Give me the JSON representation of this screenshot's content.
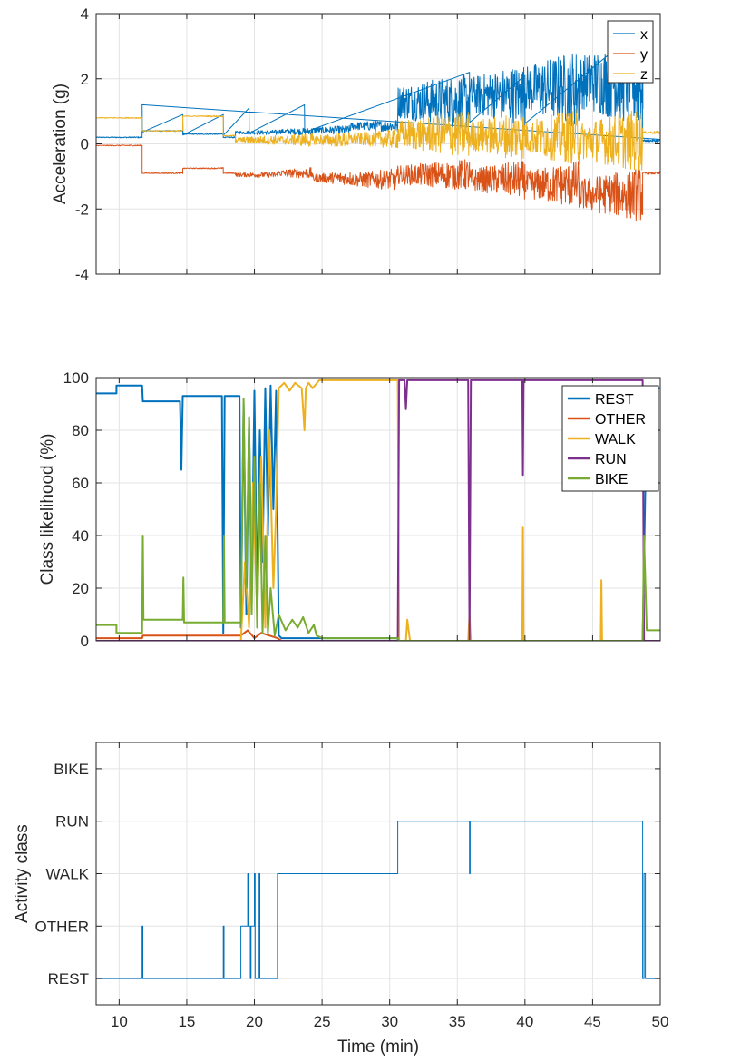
{
  "chart_data": [
    {
      "type": "line",
      "ylabel": "Acceleration (g)",
      "xlim": [
        8.3,
        50
      ],
      "ylim": [
        -4,
        4
      ],
      "yticks": [
        -4,
        -2,
        0,
        2,
        4
      ],
      "xticks": [
        10,
        15,
        20,
        25,
        30,
        35,
        40,
        45,
        50
      ],
      "grid": true,
      "legend": "top-right",
      "series": [
        {
          "name": "x",
          "color": "#0072BD",
          "segments": [
            [
              8.3,
              11.7,
              0.2,
              0.02
            ],
            [
              11.7,
              14.7,
              0.4,
              0.02
            ],
            [
              14.7,
              17.7,
              0.3,
              0.02
            ],
            [
              17.7,
              18.6,
              0.2,
              0.02
            ],
            [
              18.6,
              21.7,
              0.35,
              0.08
            ],
            [
              21.7,
              24.3,
              0.38,
              0.12
            ],
            [
              24.3,
              27.1,
              0.42,
              0.15
            ],
            [
              27.1,
              30.6,
              0.55,
              0.2
            ],
            [
              30.6,
              35.9,
              1.3,
              0.9
            ],
            [
              35.9,
              40,
              1.5,
              1.0
            ],
            [
              40,
              44,
              1.7,
              1.25
            ],
            [
              44,
              48.7,
              1.9,
              1.45
            ],
            [
              48.7,
              50,
              0.1,
              0.05
            ]
          ]
        },
        {
          "name": "y",
          "color": "#D95319",
          "segments": [
            [
              8.3,
              11.7,
              -0.05,
              0.02
            ],
            [
              11.7,
              14.7,
              -0.9,
              0.02
            ],
            [
              14.7,
              17.7,
              -0.75,
              0.02
            ],
            [
              17.7,
              18.6,
              -0.9,
              0.02
            ],
            [
              18.6,
              21.7,
              -0.95,
              0.1
            ],
            [
              21.7,
              24.3,
              -0.9,
              0.18
            ],
            [
              24.3,
              27.1,
              -1.05,
              0.22
            ],
            [
              27.1,
              30.6,
              -1.1,
              0.35
            ],
            [
              30.6,
              35.9,
              -0.95,
              0.5
            ],
            [
              35.9,
              40,
              -1.1,
              0.6
            ],
            [
              40,
              44,
              -1.25,
              0.75
            ],
            [
              44,
              48.7,
              -1.55,
              0.85
            ],
            [
              48.7,
              50,
              -0.9,
              0.05
            ]
          ]
        },
        {
          "name": "z",
          "color": "#EDB120",
          "segments": [
            [
              8.3,
              11.7,
              0.8,
              0.02
            ],
            [
              11.7,
              14.7,
              0.4,
              0.02
            ],
            [
              14.7,
              17.7,
              0.85,
              0.02
            ],
            [
              17.7,
              18.6,
              0.25,
              0.02
            ],
            [
              18.6,
              21.7,
              0.12,
              0.15
            ],
            [
              21.7,
              24.3,
              0.12,
              0.22
            ],
            [
              24.3,
              27.1,
              0.12,
              0.25
            ],
            [
              27.1,
              30.6,
              0.15,
              0.3
            ],
            [
              30.6,
              35.9,
              0.3,
              0.75
            ],
            [
              35.9,
              40,
              0.25,
              0.8
            ],
            [
              40,
              44,
              0.2,
              0.9
            ],
            [
              44,
              48.7,
              0.1,
              1.0
            ],
            [
              48.7,
              50,
              0.35,
              0.05
            ]
          ]
        }
      ]
    },
    {
      "type": "line",
      "ylabel": "Class likelihood (%)",
      "xlim": [
        8.3,
        50
      ],
      "ylim": [
        0,
        100
      ],
      "yticks": [
        0,
        20,
        40,
        60,
        80,
        100
      ],
      "xticks": [
        10,
        15,
        20,
        25,
        30,
        35,
        40,
        45,
        50
      ],
      "grid": true,
      "legend": "top-right",
      "series": [
        {
          "name": "REST",
          "color": "#0072BD",
          "x": [
            8.3,
            9.8,
            9.8,
            11.7,
            11.75,
            14.5,
            14.6,
            14.7,
            14.8,
            17.6,
            17.7,
            17.8,
            18.9,
            19.0,
            19.2,
            19.4,
            19.6,
            19.8,
            20.0,
            20.2,
            20.4,
            20.6,
            20.8,
            21.0,
            21.2,
            21.4,
            21.6,
            21.8,
            22.0,
            30.6,
            30.7,
            48.7,
            48.9,
            49.0,
            50
          ],
          "y": [
            94,
            94,
            97,
            97,
            91,
            91,
            65,
            93,
            93,
            93,
            3,
            93,
            93,
            5,
            90,
            10,
            85,
            20,
            95,
            15,
            80,
            30,
            96,
            40,
            97,
            50,
            95,
            2,
            1,
            1,
            0,
            0,
            60,
            96,
            96
          ]
        },
        {
          "name": "OTHER",
          "color": "#D95319",
          "x": [
            8.3,
            11.7,
            11.75,
            19.0,
            19.5,
            20.0,
            20.5,
            21.7,
            22.0,
            50
          ],
          "y": [
            1,
            1,
            2,
            2,
            4,
            1,
            3,
            1,
            0,
            0
          ]
        },
        {
          "name": "WALK",
          "color": "#EDB120",
          "x": [
            8.3,
            19.0,
            19.3,
            19.6,
            19.9,
            20.2,
            20.5,
            20.8,
            21.1,
            21.4,
            21.6,
            21.8,
            22.2,
            22.6,
            23.0,
            23.5,
            23.7,
            23.8,
            24.0,
            24.3,
            24.8,
            25.0,
            30.6,
            30.7,
            31.2,
            31.3,
            31.5,
            35.8,
            35.9,
            36.0,
            39.8,
            39.85,
            39.9,
            45.6,
            45.65,
            45.7,
            48.7,
            50
          ],
          "y": [
            0,
            0,
            30,
            5,
            60,
            10,
            70,
            5,
            80,
            20,
            50,
            96,
            98,
            95,
            98,
            96,
            80,
            96,
            98,
            96,
            99,
            99,
            99,
            0,
            0,
            8,
            0,
            0,
            10,
            0,
            0,
            43,
            0,
            0,
            23,
            0,
            0,
            0
          ]
        },
        {
          "name": "RUN",
          "color": "#7E2F8E",
          "x": [
            8.3,
            30.6,
            30.7,
            31.1,
            31.2,
            31.3,
            35.8,
            35.9,
            36.0,
            39.8,
            39.85,
            39.9,
            48.7,
            48.8,
            50
          ],
          "y": [
            0,
            0,
            99,
            99,
            88,
            99,
            99,
            0,
            99,
            99,
            63,
            99,
            99,
            0,
            0
          ]
        },
        {
          "name": "BIKE",
          "color": "#77AC30",
          "x": [
            8.3,
            9.8,
            9.8,
            11.7,
            11.75,
            11.8,
            14.7,
            14.75,
            14.8,
            17.7,
            17.75,
            17.8,
            19.0,
            19.2,
            19.4,
            19.6,
            19.8,
            20.0,
            20.2,
            20.4,
            20.6,
            20.8,
            21.0,
            21.2,
            21.5,
            21.8,
            22.3,
            22.8,
            23.2,
            23.6,
            24.0,
            24.4,
            24.6,
            25.0,
            30.6,
            30.7,
            48.7,
            48.8,
            49.0,
            50
          ],
          "y": [
            6,
            6,
            3,
            3,
            40,
            8,
            8,
            24,
            7,
            7,
            40,
            7,
            7,
            92,
            20,
            85,
            10,
            70,
            5,
            60,
            3,
            40,
            3,
            20,
            2,
            10,
            4,
            8,
            5,
            9,
            3,
            6,
            2,
            1,
            1,
            0,
            0,
            40,
            4,
            4
          ]
        }
      ]
    },
    {
      "type": "line",
      "ylabel": "Activity class",
      "xlabel": "Time (min)",
      "xlim": [
        8.3,
        50
      ],
      "ylim": [
        0.5,
        5.5
      ],
      "yticks": [
        1,
        2,
        3,
        4,
        5
      ],
      "yticklabels": [
        "REST",
        "OTHER",
        "WALK",
        "RUN",
        "BIKE"
      ],
      "xticks": [
        10,
        15,
        20,
        25,
        30,
        35,
        40,
        45,
        50
      ],
      "grid": true,
      "series": [
        {
          "name": "class",
          "color": "#0072BD",
          "x": [
            8.3,
            11.7,
            11.7,
            11.75,
            11.75,
            17.7,
            17.7,
            17.75,
            17.75,
            19.0,
            19.0,
            19.5,
            19.5,
            19.55,
            19.55,
            19.7,
            19.7,
            19.75,
            19.75,
            20.0,
            20.0,
            20.05,
            20.05,
            20.1,
            20.1,
            20.35,
            20.35,
            20.4,
            20.4,
            21.7,
            21.7,
            30.6,
            30.6,
            35.9,
            35.9,
            35.95,
            35.95,
            48.7,
            48.7,
            48.8,
            48.8,
            48.9,
            48.9,
            50
          ],
          "y": [
            1,
            1,
            2,
            2,
            1,
            1,
            2,
            2,
            1,
            1,
            2,
            2,
            3,
            3,
            2,
            2,
            1,
            1,
            2,
            2,
            3,
            3,
            1,
            1,
            1,
            1,
            3,
            3,
            1,
            1,
            3,
            3,
            4,
            4,
            3,
            3,
            4,
            4,
            1,
            1,
            3,
            3,
            1,
            1
          ]
        }
      ]
    }
  ]
}
